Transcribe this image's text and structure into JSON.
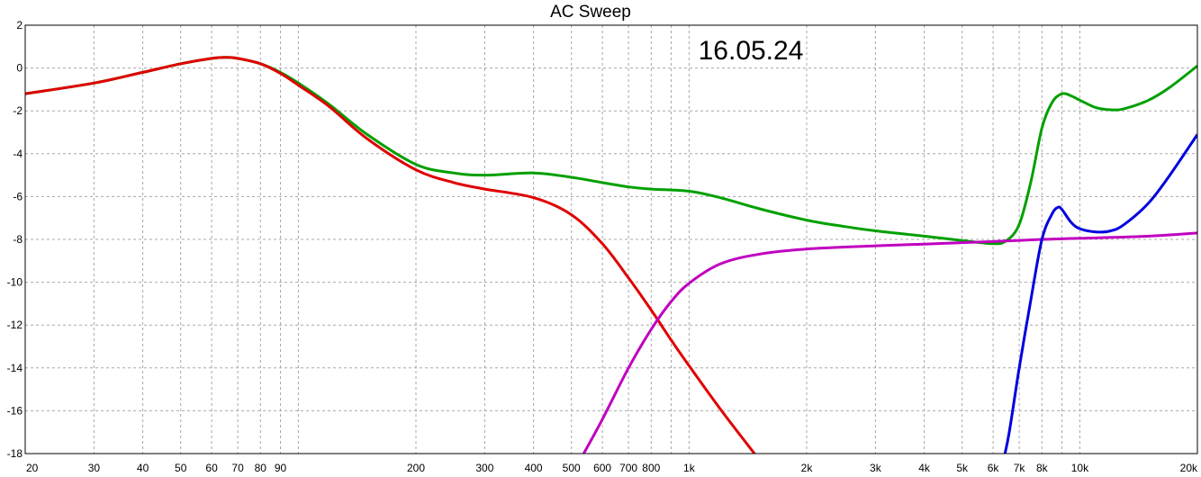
{
  "chart_data": {
    "type": "line",
    "title": "AC Sweep",
    "annotation": "16.05.24",
    "xlabel": "",
    "ylabel": "",
    "x_scale": "log",
    "xlim": [
      20,
      20000
    ],
    "ylim": [
      -18,
      2
    ],
    "grid": true,
    "y_ticks": [
      {
        "value": 2,
        "label": "2"
      },
      {
        "value": 0,
        "label": "0"
      },
      {
        "value": -2,
        "label": "-2"
      },
      {
        "value": -4,
        "label": "-4"
      },
      {
        "value": -6,
        "label": "-6"
      },
      {
        "value": -8,
        "label": "-8"
      },
      {
        "value": -10,
        "label": "-10"
      },
      {
        "value": -12,
        "label": "-12"
      },
      {
        "value": -14,
        "label": "-14"
      },
      {
        "value": -16,
        "label": "-16"
      },
      {
        "value": -18,
        "label": "-18"
      }
    ],
    "x_ticks": [
      {
        "value": 20,
        "label": "20"
      },
      {
        "value": 30,
        "label": "30"
      },
      {
        "value": 40,
        "label": "40"
      },
      {
        "value": 50,
        "label": "50"
      },
      {
        "value": 60,
        "label": "60"
      },
      {
        "value": 70,
        "label": "70"
      },
      {
        "value": 80,
        "label": "80"
      },
      {
        "value": 90,
        "label": "90"
      },
      {
        "value": 200,
        "label": "200"
      },
      {
        "value": 300,
        "label": "300"
      },
      {
        "value": 400,
        "label": "400"
      },
      {
        "value": 500,
        "label": "500"
      },
      {
        "value": 600,
        "label": "600"
      },
      {
        "value": 700,
        "label": "700"
      },
      {
        "value": 800,
        "label": "800"
      },
      {
        "value": 1000,
        "label": "1k"
      },
      {
        "value": 2000,
        "label": "2k"
      },
      {
        "value": 3000,
        "label": "3k"
      },
      {
        "value": 4000,
        "label": "4k"
      },
      {
        "value": 5000,
        "label": "5k"
      },
      {
        "value": 6000,
        "label": "6k"
      },
      {
        "value": 7000,
        "label": "7k"
      },
      {
        "value": 8000,
        "label": "8k"
      },
      {
        "value": 10000,
        "label": "10k"
      },
      {
        "value": 20000,
        "label": "20k"
      }
    ],
    "x_grid": [
      20,
      30,
      40,
      50,
      60,
      70,
      80,
      90,
      100,
      200,
      300,
      400,
      500,
      600,
      700,
      800,
      900,
      1000,
      2000,
      3000,
      4000,
      5000,
      6000,
      7000,
      8000,
      9000,
      10000,
      20000
    ],
    "series": [
      {
        "color": "#00a000",
        "x": [
          20,
          30,
          40,
          50,
          60,
          65,
          70,
          80,
          90,
          100,
          120,
          150,
          200,
          250,
          300,
          400,
          500,
          600,
          700,
          800,
          1000,
          1200,
          1500,
          2000,
          2500,
          3000,
          4000,
          5000,
          6000,
          6500,
          7000,
          7500,
          8000,
          8500,
          9000,
          9500,
          10000,
          11000,
          12000,
          13000,
          15000,
          17000,
          20000
        ],
        "y": [
          -1.2,
          -0.7,
          -0.2,
          0.2,
          0.45,
          0.5,
          0.45,
          0.2,
          -0.2,
          -0.7,
          -1.7,
          -3.1,
          -4.5,
          -4.9,
          -5.0,
          -4.9,
          -5.1,
          -5.35,
          -5.55,
          -5.65,
          -5.75,
          -6.05,
          -6.55,
          -7.1,
          -7.4,
          -7.6,
          -7.85,
          -8.05,
          -8.2,
          -8.05,
          -7.3,
          -5.3,
          -2.8,
          -1.6,
          -1.2,
          -1.3,
          -1.5,
          -1.85,
          -1.95,
          -1.9,
          -1.5,
          -0.9,
          0.1
        ]
      },
      {
        "color": "#e00000",
        "x": [
          20,
          30,
          40,
          50,
          60,
          65,
          70,
          80,
          90,
          100,
          120,
          150,
          200,
          250,
          300,
          400,
          500,
          600,
          700,
          800,
          900,
          1000,
          1200,
          1400,
          1500
        ],
        "y": [
          -1.2,
          -0.7,
          -0.2,
          0.2,
          0.45,
          0.5,
          0.45,
          0.2,
          -0.25,
          -0.8,
          -1.8,
          -3.3,
          -4.75,
          -5.35,
          -5.65,
          -6.05,
          -6.85,
          -8.2,
          -9.8,
          -11.3,
          -12.7,
          -13.9,
          -15.9,
          -17.5,
          -18.2
        ]
      },
      {
        "color": "#c000c0",
        "x": [
          530,
          600,
          700,
          800,
          900,
          1000,
          1200,
          1500,
          2000,
          3000,
          4000,
          5000,
          6000,
          8000,
          10000,
          15000,
          20000
        ],
        "y": [
          -18.2,
          -16.4,
          -14.0,
          -12.2,
          -10.9,
          -10.05,
          -9.15,
          -8.7,
          -8.45,
          -8.3,
          -8.22,
          -8.15,
          -8.1,
          -8.0,
          -7.95,
          -7.85,
          -7.7
        ]
      },
      {
        "color": "#0000e0",
        "x": [
          6400,
          6600,
          7000,
          7500,
          8000,
          8500,
          8800,
          9000,
          9500,
          10000,
          11000,
          12000,
          13000,
          15000,
          17000,
          20000
        ],
        "y": [
          -18.2,
          -17.0,
          -14.0,
          -10.8,
          -8.0,
          -6.8,
          -6.5,
          -6.6,
          -7.2,
          -7.5,
          -7.65,
          -7.6,
          -7.3,
          -6.3,
          -5.0,
          -3.1
        ]
      }
    ]
  }
}
